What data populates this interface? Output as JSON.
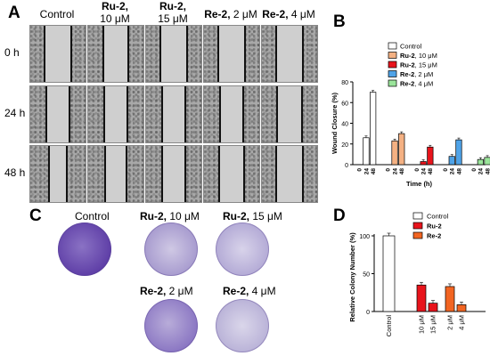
{
  "panels": {
    "A": "A",
    "B": "B",
    "C": "C",
    "D": "D"
  },
  "panel_a": {
    "columns": [
      {
        "bold": "",
        "rest": "Control"
      },
      {
        "bold": "Ru-2,",
        "rest": "10 μM"
      },
      {
        "bold": "Ru-2,",
        "rest": "15 μM"
      },
      {
        "bold": "Re-2,",
        "rest": " 2 μM"
      },
      {
        "bold": "Re-2,",
        "rest": " 4 μM"
      }
    ],
    "rows": [
      "0 h",
      "24 h",
      "48 h"
    ]
  },
  "panel_c": {
    "dishes": [
      {
        "bold": "",
        "rest": "Control"
      },
      {
        "bold": "Ru-2,",
        "rest": " 10 μM"
      },
      {
        "bold": "Ru-2,",
        "rest": " 15 μM"
      },
      {
        "bold": "Re-2,",
        "rest": " 2 μM"
      },
      {
        "bold": "Re-2,",
        "rest": " 4 μM"
      }
    ]
  },
  "chart_data": [
    {
      "type": "bar",
      "panel": "B",
      "ylabel": "Wound Closure (%)",
      "xlabel": "Time (h)",
      "ylim": [
        0,
        80
      ],
      "yticks": [
        0,
        20,
        40,
        60,
        80
      ],
      "group_ticks": [
        "0",
        "24",
        "48"
      ],
      "legend": [
        {
          "label_bold": "",
          "label_rest": "Control",
          "color": "#ffffff"
        },
        {
          "label_bold": "Ru-2",
          "label_rest": ", 10 μM",
          "color": "#f4b183"
        },
        {
          "label_bold": "Ru-2",
          "label_rest": ", 15 μM",
          "color": "#e8141c"
        },
        {
          "label_bold": "Re-2",
          "label_rest": ", 2 μM",
          "color": "#4fa3e8"
        },
        {
          "label_bold": "Re-2",
          "label_rest": ", 4 μM",
          "color": "#9be59b"
        }
      ],
      "series": [
        {
          "name": "Control",
          "values": [
            0,
            26,
            70
          ]
        },
        {
          "name": "Ru-2, 10 μM",
          "values": [
            0,
            23,
            30
          ]
        },
        {
          "name": "Ru-2, 15 μM",
          "values": [
            0,
            3,
            17
          ]
        },
        {
          "name": "Re-2, 2 μM",
          "values": [
            0,
            8,
            24
          ]
        },
        {
          "name": "Re-2, 4 μM",
          "values": [
            0,
            5,
            7
          ]
        }
      ]
    },
    {
      "type": "bar",
      "panel": "D",
      "ylabel": "Relative Colony Number (%)",
      "ylim": [
        0,
        100
      ],
      "yticks": [
        0,
        50,
        100
      ],
      "legend": [
        {
          "label": "Control",
          "color": "#ffffff"
        },
        {
          "label": "Ru-2",
          "color": "#e8141c"
        },
        {
          "label": "Re-2",
          "color": "#f26522"
        }
      ],
      "categories": [
        "Control",
        "10 μM",
        "15 μM",
        "2 μM",
        "4 μM"
      ],
      "values": [
        100,
        35,
        11,
        33,
        9
      ],
      "colors": [
        "#ffffff",
        "#e8141c",
        "#e8141c",
        "#f26522",
        "#f26522"
      ]
    }
  ]
}
